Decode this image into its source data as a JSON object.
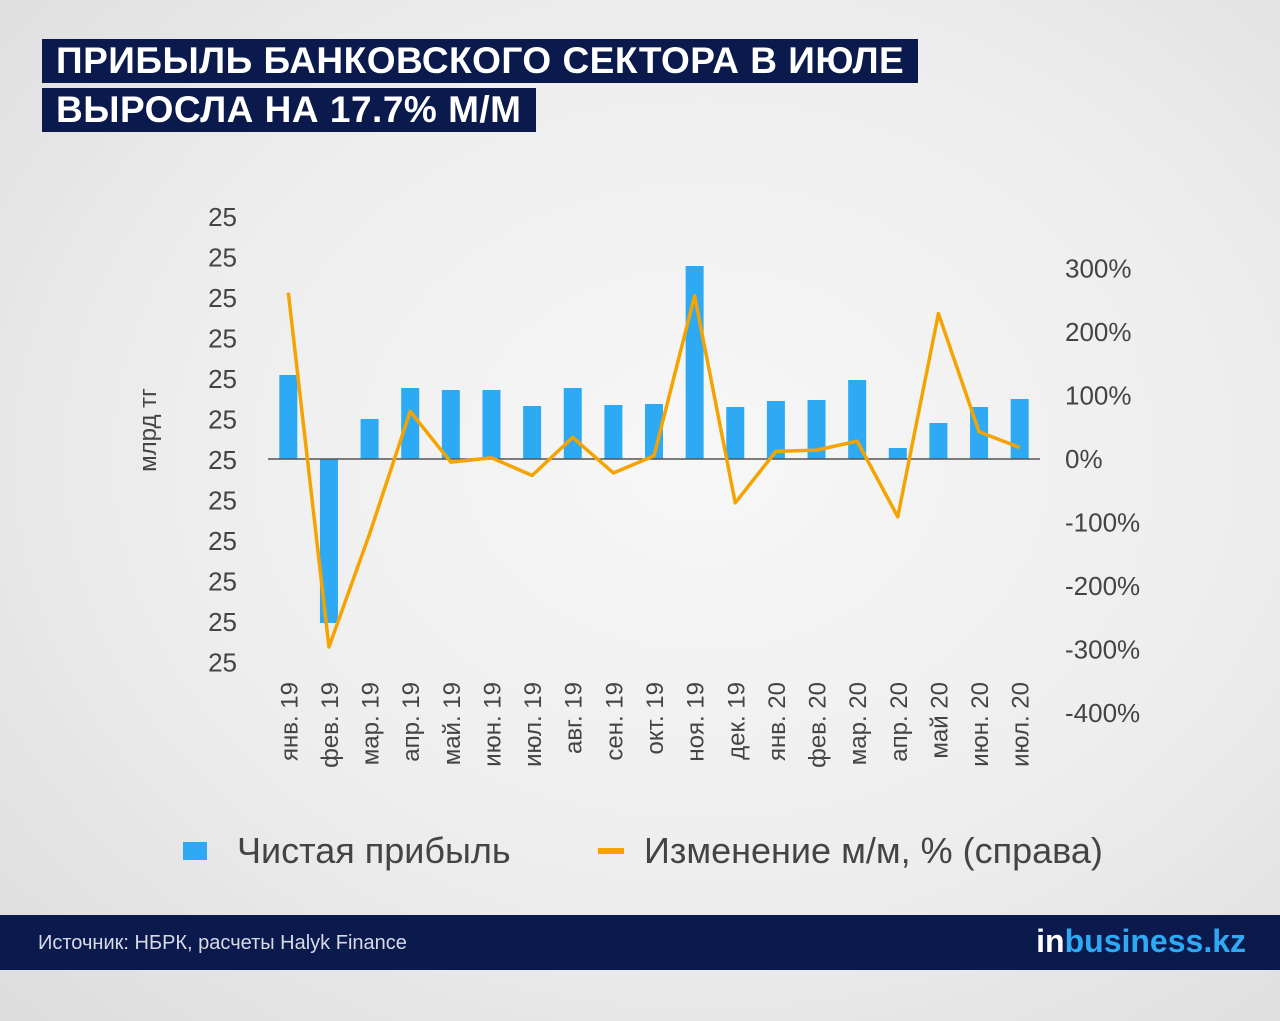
{
  "header": {
    "title_line1": "ПРИБЫЛЬ БАНКОВСКОГО СЕКТОРА В ИЮЛЕ",
    "title_line2": "ВЫРОСЛА НА 17.7% М/М"
  },
  "chart_data": {
    "type": "bar+line",
    "categories": [
      "янв. 19",
      "фев. 19",
      "мар. 19",
      "апр. 19",
      "май. 19",
      "июн. 19",
      "июл. 19",
      "авг. 19",
      "сен. 19",
      "окт. 19",
      "ноя. 19",
      "дек. 19",
      "янв. 20",
      "фев. 20",
      "мар. 20",
      "апр. 20",
      "май 20",
      "июн. 20",
      "июл. 20"
    ],
    "series": [
      {
        "name": "Чистая прибыль",
        "axis": "left",
        "color": "#2eaaf5",
        "values": [
          84,
          -164,
          40,
          71,
          69,
          69,
          53,
          71,
          54,
          55,
          193,
          52,
          58,
          59,
          79,
          11,
          36,
          52,
          60
        ]
      },
      {
        "name": "Изменение м/м, % (справа)",
        "axis": "right",
        "color": "#f5a300",
        "values": [
          262,
          -296,
          -118,
          75,
          -5,
          2,
          -26,
          34,
          -22,
          5,
          257,
          -69,
          12,
          14,
          28,
          -91,
          229,
          43,
          18
        ]
      }
    ],
    "ylabel": "млрд тг",
    "y_left_tick_labels": [
      "25",
      "25",
      "25",
      "25",
      "25",
      "25",
      "25",
      "25",
      "25",
      "25",
      "25",
      "25"
    ],
    "y_left_range": [
      -200,
      240
    ],
    "y_right_ticks": [
      300,
      200,
      100,
      0,
      -100,
      -200,
      -300,
      -400
    ],
    "y_right_tick_labels": [
      "300%",
      "200%",
      "100%",
      "0%",
      "-100%",
      "-200%",
      "-300%",
      "-400%"
    ],
    "y_right_range": [
      -400,
      300
    ],
    "grid": false,
    "legend_position": "bottom"
  },
  "legend": {
    "bar_label": "Чистая прибыль",
    "line_label": "Изменение м/м, % (справа)"
  },
  "footer": {
    "source": "Источник:  НБРК, расчеты Halyk Finance",
    "brand_in": "in",
    "brand_rest": "business.kz"
  }
}
